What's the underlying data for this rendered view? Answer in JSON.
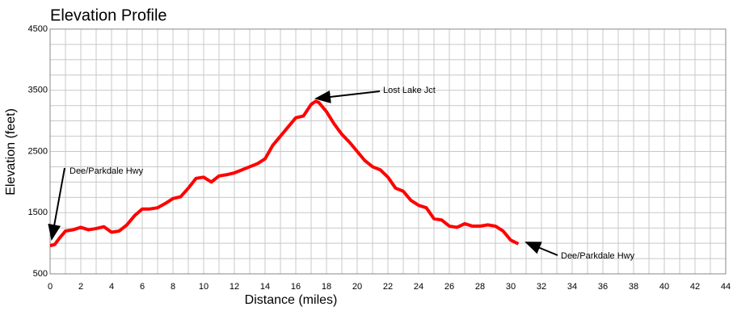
{
  "chart_data": {
    "type": "line",
    "title": "Elevation Profile",
    "xlabel": "Distance (miles)",
    "ylabel": "Elevation (feet)",
    "x": [
      0,
      0.3,
      0.6,
      1,
      1.5,
      2,
      2.5,
      3,
      3.5,
      4,
      4.5,
      5,
      5.5,
      6,
      6.5,
      7,
      7.5,
      8,
      8.5,
      9,
      9.5,
      10,
      10.5,
      11,
      11.5,
      12,
      12.5,
      13,
      13.5,
      14,
      14.5,
      15,
      15.5,
      16,
      16.5,
      17,
      17.3,
      17.5,
      18,
      18.5,
      19,
      19.5,
      20,
      20.5,
      21,
      21.5,
      22,
      22.5,
      23,
      23.5,
      24,
      24.5,
      25,
      25.5,
      26,
      26.5,
      27,
      27.5,
      28,
      28.5,
      29,
      29.5,
      30,
      30.5
    ],
    "series": [
      {
        "name": "Elevation",
        "color": "#ff0000",
        "values": [
          960,
          980,
          1080,
          1200,
          1220,
          1260,
          1220,
          1240,
          1270,
          1180,
          1200,
          1300,
          1450,
          1560,
          1560,
          1580,
          1650,
          1730,
          1760,
          1900,
          2060,
          2080,
          2000,
          2100,
          2120,
          2150,
          2200,
          2250,
          2300,
          2380,
          2600,
          2750,
          2900,
          3050,
          3080,
          3270,
          3320,
          3300,
          3150,
          2950,
          2780,
          2650,
          2500,
          2350,
          2250,
          2200,
          2080,
          1900,
          1850,
          1700,
          1620,
          1580,
          1400,
          1380,
          1280,
          1260,
          1320,
          1280,
          1280,
          1300,
          1280,
          1200,
          1050,
          990
        ]
      }
    ],
    "xlim": [
      0,
      44
    ],
    "ylim": [
      500,
      4500
    ],
    "xticks": [
      0,
      2,
      4,
      6,
      8,
      10,
      12,
      14,
      16,
      18,
      20,
      22,
      24,
      26,
      28,
      30,
      32,
      34,
      36,
      38,
      40,
      42,
      44
    ],
    "yticks": [
      500,
      1500,
      2500,
      3500,
      4500
    ],
    "xgrid": [
      0,
      1,
      2,
      3,
      4,
      5,
      6,
      7,
      8,
      9,
      10,
      11,
      12,
      13,
      14,
      15,
      16,
      17,
      18,
      19,
      20,
      21,
      22,
      23,
      24,
      25,
      26,
      27,
      28,
      29,
      30,
      31,
      32,
      33,
      34,
      35,
      36,
      37,
      38,
      39,
      40,
      41,
      42,
      43,
      44
    ],
    "ygrid": [
      500,
      750,
      1000,
      1250,
      1500,
      1750,
      2000,
      2250,
      2500,
      2750,
      3000,
      3250,
      3500,
      3750,
      4000,
      4250,
      4500
    ],
    "annotations": [
      "Dee/Parkdale Hwy",
      "Lost Lake Jct",
      "Dee/Parkdale Hwy"
    ]
  }
}
